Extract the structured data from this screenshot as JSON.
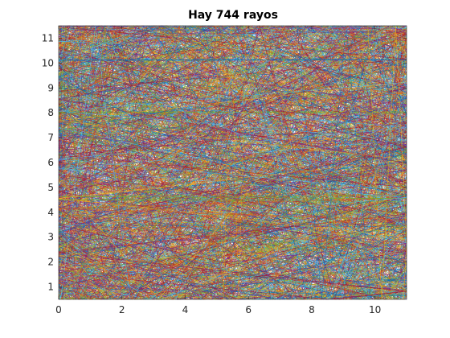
{
  "chart_data": {
    "type": "line",
    "title": "Hay 744 rayos",
    "xlabel": "",
    "ylabel": "",
    "xlim": [
      0,
      11
    ],
    "ylim": [
      0.5,
      11.5
    ],
    "x_ticks": [
      0,
      2,
      4,
      6,
      8,
      10
    ],
    "y_ticks": [
      1,
      2,
      3,
      4,
      5,
      6,
      7,
      8,
      9,
      10,
      11
    ],
    "grid": false,
    "legend": "none",
    "ray_count": 744,
    "colors": [
      "#0072bd",
      "#d95319",
      "#edb120",
      "#7e2f8e",
      "#77ac30",
      "#4dbeee",
      "#a2142f"
    ],
    "line_width": 0.5
  }
}
